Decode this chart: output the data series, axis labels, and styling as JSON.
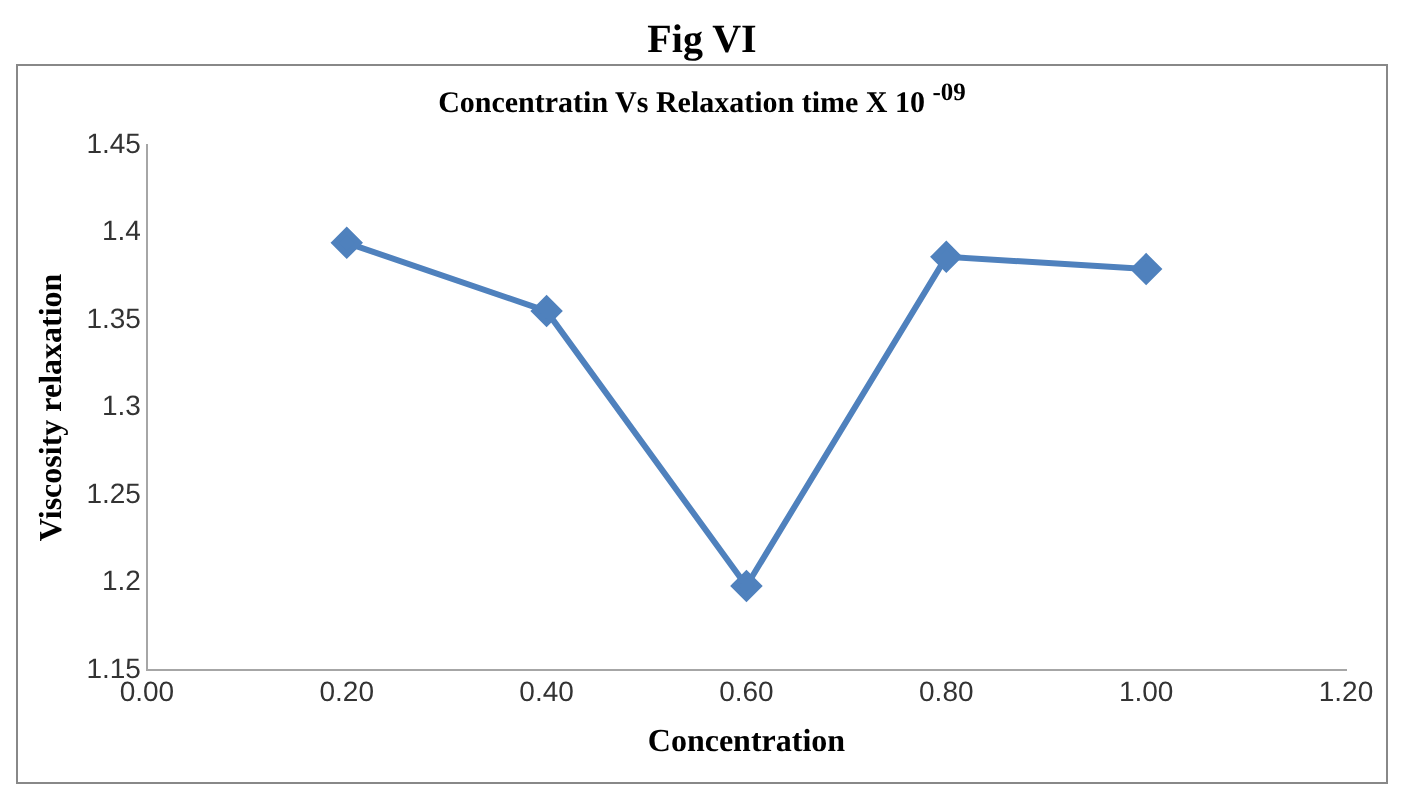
{
  "chart_data": {
    "type": "line",
    "title": "Concentratin Vs Relaxation time X 10 $^{-09}$",
    "xlabel": "Concentration",
    "ylabel": "Viscosity relaxation",
    "annotations": [
      "Fig VI"
    ],
    "x": [
      0.2,
      0.4,
      0.6,
      0.8,
      1.0
    ],
    "series": [
      {
        "color": "#4f81bd",
        "values": [
          1.394,
          1.355,
          1.198,
          1.386,
          1.379
        ]
      }
    ],
    "xlim": [
      0,
      1.2
    ],
    "xticks": [
      {
        "value": 0,
        "label": "0.00"
      },
      {
        "value": 0.2,
        "label": "0.20"
      },
      {
        "value": 0.4,
        "label": "0.40"
      },
      {
        "value": 0.6,
        "label": "0.60"
      },
      {
        "value": 0.8,
        "label": "0.80"
      },
      {
        "value": 1.0,
        "label": "1.00"
      },
      {
        "value": 1.2,
        "label": "1.20"
      }
    ],
    "ylim": [
      1.15,
      1.45
    ],
    "yticks": [
      1.15,
      1.2,
      1.25,
      1.3,
      1.35,
      1.4,
      1.45
    ],
    "grid": false,
    "legend": false,
    "marker": "diamond",
    "line_style": "solid"
  }
}
